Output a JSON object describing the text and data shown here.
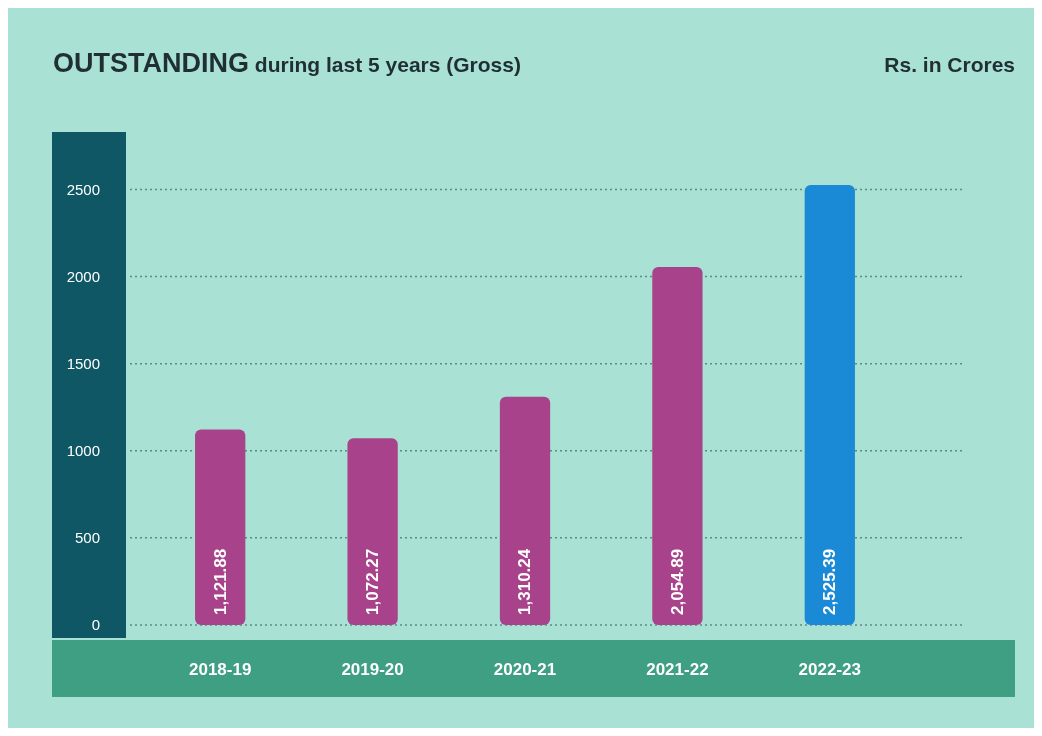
{
  "chart_data": {
    "type": "bar",
    "title": "OUTSTANDING during last 5 years (Gross)",
    "annotations": [
      "Rs. in Crores"
    ],
    "categories": [
      "2018-19",
      "2019-20",
      "2020-21",
      "2021-22",
      "2022-23"
    ],
    "values": [
      1121.88,
      1072.27,
      1310.24,
      2054.89,
      2525.39
    ],
    "colors": [
      "#a8428a",
      "#a8428a",
      "#a8428a",
      "#a8428a",
      "#1a8ad6"
    ],
    "value_labels": [
      "1,121.88",
      "1,072.27",
      "1,310.24",
      "2,054.89",
      "2,525.39"
    ],
    "ylim": [
      -75,
      2830
    ],
    "yticks": [
      0,
      500,
      1000,
      1500,
      2000,
      2500
    ],
    "grid": "y"
  }
}
